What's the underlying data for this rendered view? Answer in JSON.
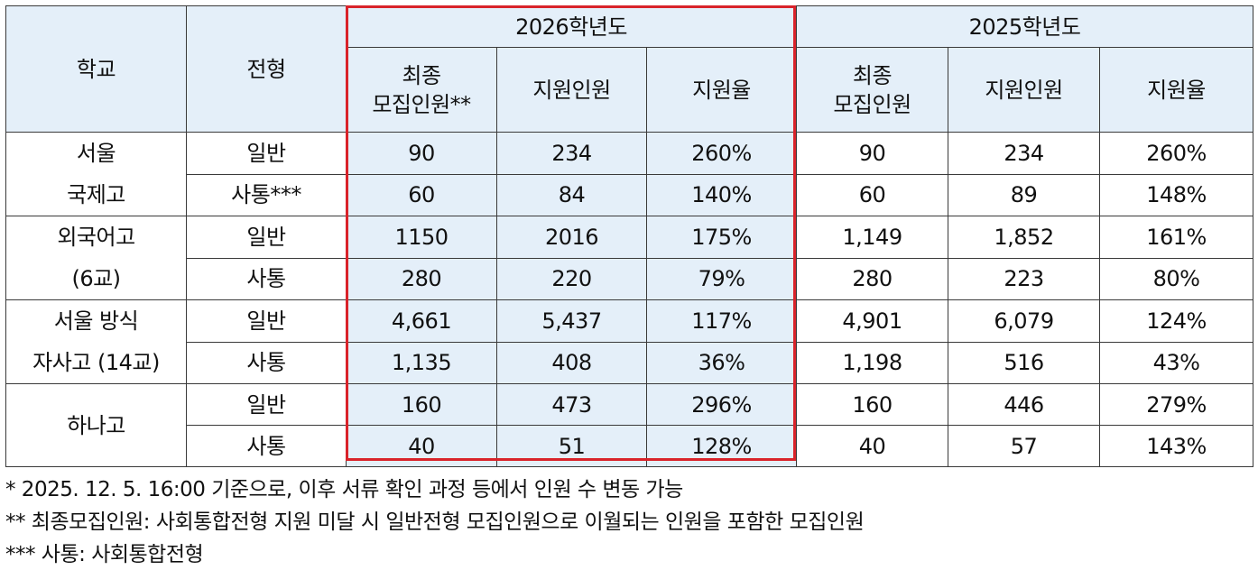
{
  "table": {
    "headers": {
      "school": "학교",
      "type": "전형",
      "year_2026": "2026학년도",
      "year_2025": "2025학년도",
      "final_recruit_2026_line1": "최종",
      "final_recruit_2026_line2": "모집인원**",
      "applicants": "지원인원",
      "rate": "지원율",
      "final_recruit_2025_line1": "최종",
      "final_recruit_2025_line2": "모집인원"
    },
    "groups": [
      {
        "school_lines": [
          "서울",
          "국제고"
        ],
        "rows": [
          {
            "type": "일반",
            "y2026": [
              "90",
              "234",
              "260%"
            ],
            "y2025": [
              "90",
              "234",
              "260%"
            ]
          },
          {
            "type": "사통***",
            "y2026": [
              "60",
              "84",
              "140%"
            ],
            "y2025": [
              "60",
              "89",
              "148%"
            ]
          }
        ]
      },
      {
        "school_lines": [
          "외국어고",
          "(6교)"
        ],
        "rows": [
          {
            "type": "일반",
            "y2026": [
              "1150",
              "2016",
              "175%"
            ],
            "y2025": [
              "1,149",
              "1,852",
              "161%"
            ]
          },
          {
            "type": "사통",
            "y2026": [
              "280",
              "220",
              "79%"
            ],
            "y2025": [
              "280",
              "223",
              "80%"
            ]
          }
        ]
      },
      {
        "school_lines": [
          "서울 방식",
          "자사고 (14교)"
        ],
        "rows": [
          {
            "type": "일반",
            "y2026": [
              "4,661",
              "5,437",
              "117%"
            ],
            "y2025": [
              "4,901",
              "6,079",
              "124%"
            ]
          },
          {
            "type": "사통",
            "y2026": [
              "1,135",
              "408",
              "36%"
            ],
            "y2025": [
              "1,198",
              "516",
              "43%"
            ]
          }
        ]
      },
      {
        "school_lines": [
          "하나고"
        ],
        "rows": [
          {
            "type": "일반",
            "y2026": [
              "160",
              "473",
              "296%"
            ],
            "y2025": [
              "160",
              "446",
              "279%"
            ]
          },
          {
            "type": "사통",
            "y2026": [
              "40",
              "51",
              "128%"
            ],
            "y2025": [
              "40",
              "57",
              "143%"
            ]
          }
        ]
      }
    ]
  },
  "notes": {
    "note1": "* 2025. 12. 5. 16:00 기준으로, 이후 서류 확인 과정 등에서 인원 수 변동 가능",
    "note2": "** 최종모집인원: 사회통합전형 지원 미달 시 일반전형 모집인원으로 이월되는 인원을 포함한 모집인원",
    "note3": "*** 사통: 사회통합전형"
  },
  "colors": {
    "header_bg": "#e4eff9",
    "highlight_bg": "#e4eff9",
    "highlight_border": "#d9232a"
  }
}
